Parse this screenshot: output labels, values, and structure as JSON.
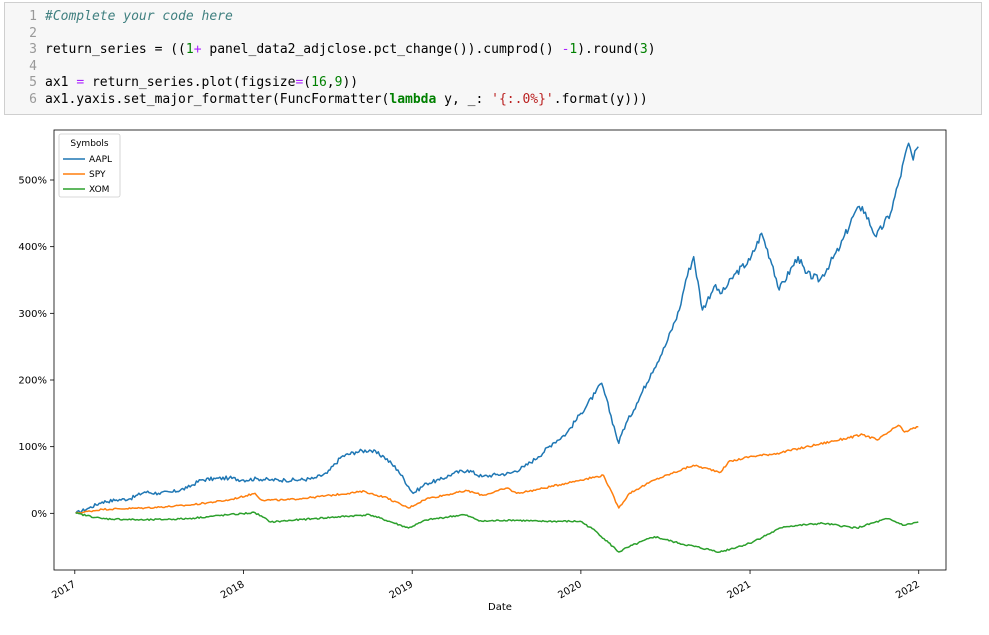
{
  "notebook": {
    "line_numbers": [
      "1",
      "2",
      "3",
      "4",
      "5",
      "6"
    ],
    "code_lines": [
      [
        {
          "c": "cm",
          "t": "#Complete your code here"
        }
      ],
      [],
      [
        {
          "c": "",
          "t": "return_series = (("
        },
        {
          "c": "num",
          "t": "1"
        },
        {
          "c": "op",
          "t": "+"
        },
        {
          "c": "",
          "t": " panel_data2_adjclose.pct_change()).cumprod() "
        },
        {
          "c": "op",
          "t": "-"
        },
        {
          "c": "num",
          "t": "1"
        },
        {
          "c": "",
          "t": ").round("
        },
        {
          "c": "num",
          "t": "3"
        },
        {
          "c": "",
          "t": ")"
        }
      ],
      [],
      [
        {
          "c": "",
          "t": "ax1 "
        },
        {
          "c": "op",
          "t": "="
        },
        {
          "c": "",
          "t": " return_series.plot(figsize"
        },
        {
          "c": "op",
          "t": "="
        },
        {
          "c": "",
          "t": "("
        },
        {
          "c": "num",
          "t": "16"
        },
        {
          "c": "",
          "t": ","
        },
        {
          "c": "num",
          "t": "9"
        },
        {
          "c": "",
          "t": "))"
        }
      ],
      [
        {
          "c": "",
          "t": "ax1.yaxis.set_major_formatter(FuncFormatter("
        },
        {
          "c": "kw",
          "t": "lambda"
        },
        {
          "c": "",
          "t": " y, _: "
        },
        {
          "c": "str",
          "t": "'{:.0%}'"
        },
        {
          "c": "",
          "t": ".format(y)))"
        }
      ]
    ]
  },
  "chart_data": {
    "type": "line",
    "xlabel": "Date",
    "ylabel": "",
    "x_ticks": [
      "2017",
      "2018",
      "2019",
      "2020",
      "2021",
      "2022"
    ],
    "y_ticks": [
      "0%",
      "100%",
      "200%",
      "300%",
      "400%",
      "500%"
    ],
    "xlim": [
      "2016-11-17",
      "2022-03-01"
    ],
    "ylim": [
      -0.85,
      5.75
    ],
    "legend": {
      "title": "Symbols",
      "position": "top-left"
    },
    "grid": false,
    "series": [
      {
        "name": "AAPL",
        "color": "#1f77b4",
        "points": [
          [
            "2017-01-03",
            0.0
          ],
          [
            "2017-02-01",
            0.08
          ],
          [
            "2017-03-01",
            0.17
          ],
          [
            "2017-04-01",
            0.2
          ],
          [
            "2017-05-01",
            0.22
          ],
          [
            "2017-06-01",
            0.32
          ],
          [
            "2017-07-01",
            0.3
          ],
          [
            "2017-08-01",
            0.32
          ],
          [
            "2017-09-01",
            0.38
          ],
          [
            "2017-10-01",
            0.5
          ],
          [
            "2017-11-01",
            0.52
          ],
          [
            "2017-12-01",
            0.53
          ],
          [
            "2018-01-01",
            0.5
          ],
          [
            "2018-02-01",
            0.52
          ],
          [
            "2018-03-01",
            0.5
          ],
          [
            "2018-04-01",
            0.5
          ],
          [
            "2018-05-01",
            0.5
          ],
          [
            "2018-06-01",
            0.52
          ],
          [
            "2018-07-01",
            0.6
          ],
          [
            "2018-08-01",
            0.85
          ],
          [
            "2018-09-01",
            0.92
          ],
          [
            "2018-10-01",
            0.95
          ],
          [
            "2018-11-01",
            0.85
          ],
          [
            "2018-12-01",
            0.65
          ],
          [
            "2019-01-03",
            0.3
          ],
          [
            "2019-02-01",
            0.45
          ],
          [
            "2019-03-01",
            0.5
          ],
          [
            "2019-04-01",
            0.6
          ],
          [
            "2019-05-01",
            0.65
          ],
          [
            "2019-06-01",
            0.55
          ],
          [
            "2019-07-01",
            0.58
          ],
          [
            "2019-08-01",
            0.6
          ],
          [
            "2019-09-01",
            0.7
          ],
          [
            "2019-10-01",
            0.85
          ],
          [
            "2019-11-01",
            1.05
          ],
          [
            "2019-12-01",
            1.2
          ],
          [
            "2020-01-01",
            1.5
          ],
          [
            "2020-02-01",
            1.8
          ],
          [
            "2020-02-15",
            1.95
          ],
          [
            "2020-03-23",
            1.05
          ],
          [
            "2020-04-01",
            1.25
          ],
          [
            "2020-05-01",
            1.65
          ],
          [
            "2020-06-01",
            2.1
          ],
          [
            "2020-07-01",
            2.5
          ],
          [
            "2020-08-01",
            3.05
          ],
          [
            "2020-08-15",
            3.5
          ],
          [
            "2020-09-01",
            3.85
          ],
          [
            "2020-09-20",
            3.05
          ],
          [
            "2020-10-15",
            3.4
          ],
          [
            "2020-11-01",
            3.3
          ],
          [
            "2020-12-01",
            3.6
          ],
          [
            "2021-01-01",
            3.8
          ],
          [
            "2021-01-26",
            4.2
          ],
          [
            "2021-02-20",
            3.7
          ],
          [
            "2021-03-05",
            3.35
          ],
          [
            "2021-04-15",
            3.85
          ],
          [
            "2021-05-01",
            3.6
          ],
          [
            "2021-06-01",
            3.5
          ],
          [
            "2021-07-15",
            4.0
          ],
          [
            "2021-08-15",
            4.5
          ],
          [
            "2021-09-01",
            4.6
          ],
          [
            "2021-10-01",
            4.15
          ],
          [
            "2021-11-01",
            4.5
          ],
          [
            "2021-11-20",
            5.0
          ],
          [
            "2021-12-10",
            5.55
          ],
          [
            "2021-12-20",
            5.3
          ],
          [
            "2021-12-31",
            5.5
          ]
        ]
      },
      {
        "name": "SPY",
        "color": "#ff7f0e",
        "points": [
          [
            "2017-01-03",
            0.0
          ],
          [
            "2017-03-01",
            0.06
          ],
          [
            "2017-06-01",
            0.08
          ],
          [
            "2017-09-01",
            0.12
          ],
          [
            "2017-12-01",
            0.2
          ],
          [
            "2018-01-26",
            0.3
          ],
          [
            "2018-02-09",
            0.2
          ],
          [
            "2018-04-01",
            0.2
          ],
          [
            "2018-06-01",
            0.24
          ],
          [
            "2018-09-20",
            0.33
          ],
          [
            "2018-10-10",
            0.28
          ],
          [
            "2018-11-01",
            0.25
          ],
          [
            "2018-12-24",
            0.08
          ],
          [
            "2019-02-01",
            0.22
          ],
          [
            "2019-04-30",
            0.34
          ],
          [
            "2019-06-03",
            0.27
          ],
          [
            "2019-07-26",
            0.38
          ],
          [
            "2019-08-15",
            0.3
          ],
          [
            "2019-10-01",
            0.36
          ],
          [
            "2019-12-31",
            0.5
          ],
          [
            "2020-02-19",
            0.57
          ],
          [
            "2020-03-23",
            0.08
          ],
          [
            "2020-04-15",
            0.3
          ],
          [
            "2020-06-08",
            0.5
          ],
          [
            "2020-08-31",
            0.72
          ],
          [
            "2020-10-30",
            0.62
          ],
          [
            "2020-11-15",
            0.77
          ],
          [
            "2020-12-31",
            0.85
          ],
          [
            "2021-03-01",
            0.9
          ],
          [
            "2021-06-01",
            1.04
          ],
          [
            "2021-09-02",
            1.18
          ],
          [
            "2021-10-04",
            1.1
          ],
          [
            "2021-11-18",
            1.32
          ],
          [
            "2021-12-01",
            1.22
          ],
          [
            "2021-12-31",
            1.3
          ]
        ]
      },
      {
        "name": "XOM",
        "color": "#2ca02c",
        "points": [
          [
            "2017-01-03",
            0.0
          ],
          [
            "2017-03-01",
            -0.08
          ],
          [
            "2017-06-01",
            -0.1
          ],
          [
            "2017-09-01",
            -0.08
          ],
          [
            "2017-12-01",
            -0.02
          ],
          [
            "2018-01-26",
            0.01
          ],
          [
            "2018-03-01",
            -0.13
          ],
          [
            "2018-06-01",
            -0.08
          ],
          [
            "2018-10-01",
            -0.02
          ],
          [
            "2018-12-24",
            -0.22
          ],
          [
            "2019-02-01",
            -0.1
          ],
          [
            "2019-04-23",
            -0.02
          ],
          [
            "2019-06-01",
            -0.12
          ],
          [
            "2019-08-01",
            -0.1
          ],
          [
            "2019-10-01",
            -0.12
          ],
          [
            "2019-12-31",
            -0.12
          ],
          [
            "2020-02-01",
            -0.26
          ],
          [
            "2020-03-23",
            -0.58
          ],
          [
            "2020-04-15",
            -0.5
          ],
          [
            "2020-06-08",
            -0.35
          ],
          [
            "2020-08-01",
            -0.45
          ],
          [
            "2020-10-28",
            -0.58
          ],
          [
            "2020-12-31",
            -0.45
          ],
          [
            "2021-03-15",
            -0.2
          ],
          [
            "2021-06-07",
            -0.15
          ],
          [
            "2021-08-20",
            -0.22
          ],
          [
            "2021-10-25",
            -0.08
          ],
          [
            "2021-12-01",
            -0.18
          ],
          [
            "2021-12-31",
            -0.13
          ]
        ]
      }
    ]
  }
}
